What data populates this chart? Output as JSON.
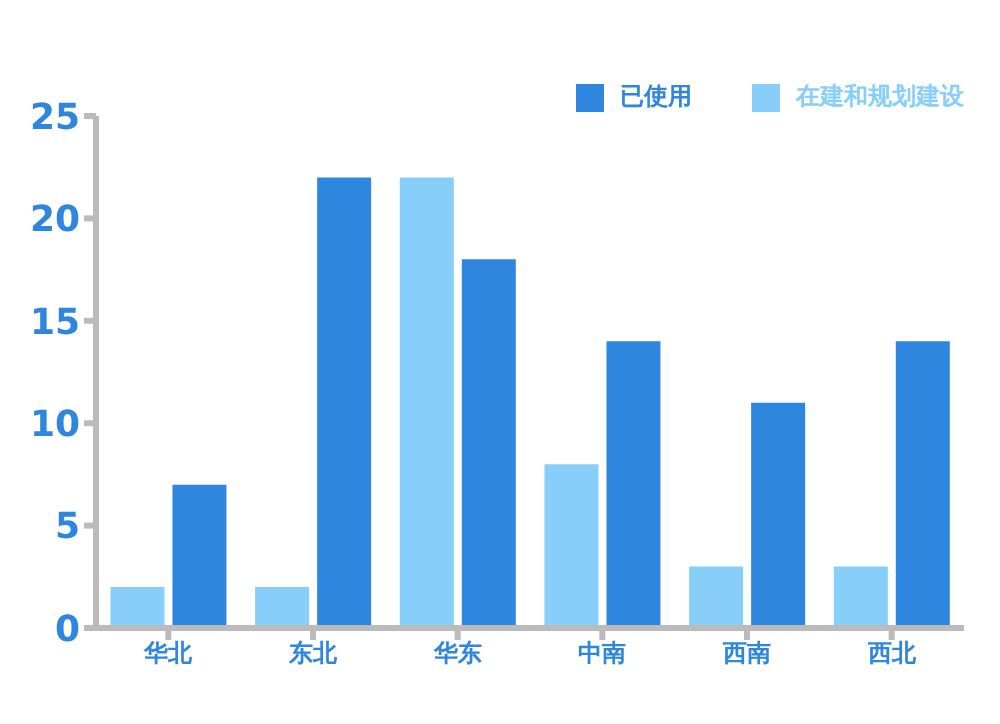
{
  "chart_data": {
    "type": "bar",
    "categories": [
      "华北",
      "东北",
      "华东",
      "中南",
      "西南",
      "西北"
    ],
    "series": [
      {
        "name": "已使用",
        "color": "#2e86de",
        "values": [
          7,
          22,
          18,
          14,
          11,
          14
        ]
      },
      {
        "name": "在建和规划建设",
        "color": "#87cefa",
        "values": [
          2,
          2,
          22,
          8,
          3,
          3
        ]
      }
    ],
    "ylim": [
      0,
      25
    ],
    "yticks": [
      0,
      5,
      10,
      15,
      20,
      25
    ],
    "legend": "top right"
  }
}
